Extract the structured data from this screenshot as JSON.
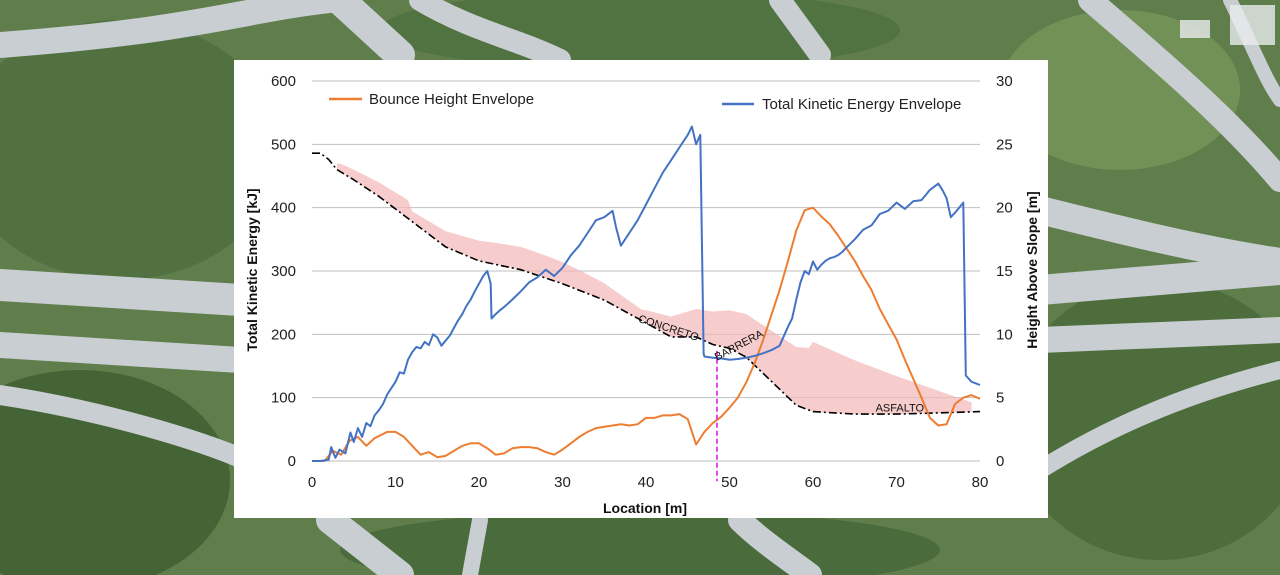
{
  "chart_data": {
    "type": "line",
    "xlabel": "Location [m]",
    "ylabel_left": "Total Kinetic Energy [kJ]",
    "ylabel_right": "Height Above Slope [m]",
    "xlim": [
      0,
      80
    ],
    "ylim_left": [
      0,
      600
    ],
    "ylim_right": [
      0,
      30
    ],
    "x_ticks": [
      0,
      10,
      20,
      30,
      40,
      50,
      60,
      70,
      80
    ],
    "y_left_ticks": [
      0,
      100,
      200,
      300,
      400,
      500,
      600
    ],
    "y_right_ticks": [
      0,
      5,
      10,
      15,
      20,
      25,
      30
    ],
    "grid": "horizontal",
    "legend_placement": "top",
    "series": [
      {
        "name": "Bounce Height Envelope",
        "axis": "right",
        "color": "#ed7d31",
        "x": [
          0,
          1.5,
          2.5,
          3.5,
          4.5,
          5.5,
          6.5,
          7.5,
          9,
          10,
          11,
          12,
          13,
          14,
          15,
          16,
          17,
          18,
          19,
          20,
          21,
          22,
          23,
          24,
          25,
          26,
          27,
          28,
          29,
          30,
          31,
          32,
          33,
          34,
          35,
          36,
          37,
          38,
          39,
          40,
          41,
          42,
          43,
          44,
          45,
          46,
          47,
          48,
          49,
          50,
          51,
          52,
          53,
          54,
          55,
          56,
          57,
          58,
          59,
          60,
          61,
          62,
          63,
          64,
          65,
          66,
          67,
          68,
          69,
          70,
          71,
          72,
          73,
          74,
          75,
          76,
          77,
          78,
          79,
          80
        ],
        "values": [
          0,
          0,
          0.8,
          0.5,
          1.6,
          1.9,
          1.2,
          1.8,
          2.3,
          2.3,
          1.9,
          1.2,
          0.5,
          0.7,
          0.3,
          0.4,
          0.8,
          1.2,
          1.4,
          1.4,
          1.0,
          0.5,
          0.6,
          1.0,
          1.1,
          1.1,
          1.0,
          0.7,
          0.5,
          0.9,
          1.4,
          1.9,
          2.3,
          2.6,
          2.7,
          2.8,
          2.9,
          2.8,
          2.9,
          3.4,
          3.4,
          3.6,
          3.6,
          3.7,
          3.3,
          1.3,
          2.3,
          3.0,
          3.5,
          4.2,
          5.0,
          6.2,
          7.7,
          9.5,
          11.5,
          13.5,
          15.8,
          18.2,
          19.8,
          20.0,
          19.3,
          18.7,
          17.8,
          16.8,
          15.8,
          14.6,
          13.5,
          12.0,
          10.8,
          9.6,
          8.0,
          6.5,
          5.0,
          3.4,
          2.8,
          2.9,
          4.5,
          5.0,
          5.2,
          4.9
        ]
      },
      {
        "name": "Total Kinetic Energy Envelope",
        "axis": "left",
        "color": "#4472c4",
        "x": [
          0,
          1,
          2,
          2.3,
          2.8,
          3.3,
          4,
          4.6,
          5,
          5.5,
          6,
          6.5,
          7,
          7.5,
          8,
          8.5,
          9,
          9.5,
          10,
          10.5,
          11,
          11.5,
          12,
          12.5,
          13,
          13.5,
          14,
          14.5,
          15,
          15.5,
          16,
          16.5,
          17,
          17.5,
          18,
          18.5,
          19,
          19.5,
          20,
          20.5,
          21,
          21.4,
          21.5,
          22,
          22.5,
          23,
          24,
          25,
          26,
          27,
          28,
          29,
          30,
          31,
          32,
          33,
          34,
          35,
          36,
          36.4,
          37,
          38,
          39,
          40,
          41,
          42,
          43,
          44,
          45,
          45.5,
          46,
          46.5,
          46.9,
          47,
          48,
          49,
          50,
          51,
          52,
          53,
          54,
          55,
          56,
          57,
          57.5,
          58,
          58.5,
          59,
          59.5,
          60,
          60.5,
          61,
          61.5,
          62,
          62.5,
          63,
          63.5,
          64,
          65,
          66,
          67,
          68,
          69,
          70,
          71,
          72,
          73,
          74,
          75,
          75.5,
          76,
          76.5,
          77,
          77.5,
          78,
          78.3,
          79,
          80
        ],
        "values": [
          0,
          0,
          2,
          22,
          5,
          18,
          12,
          45,
          30,
          52,
          38,
          60,
          55,
          72,
          80,
          90,
          105,
          115,
          125,
          140,
          138,
          160,
          172,
          180,
          178,
          188,
          183,
          200,
          195,
          182,
          190,
          198,
          210,
          222,
          232,
          245,
          255,
          268,
          280,
          292,
          300,
          280,
          225,
          232,
          238,
          243,
          255,
          268,
          282,
          290,
          302,
          292,
          305,
          325,
          340,
          360,
          380,
          385,
          395,
          370,
          340,
          360,
          380,
          405,
          430,
          455,
          475,
          495,
          515,
          528,
          500,
          515,
          170,
          165,
          163,
          162,
          160,
          161,
          163,
          166,
          170,
          175,
          182,
          212,
          225,
          255,
          282,
          300,
          295,
          315,
          302,
          310,
          316,
          320,
          322,
          325,
          330,
          337,
          350,
          365,
          372,
          390,
          395,
          408,
          398,
          410,
          412,
          428,
          438,
          428,
          415,
          385,
          392,
          400,
          408,
          135,
          125,
          120
        ]
      }
    ],
    "slope_profile": {
      "x": [
        0,
        0.5,
        1,
        2,
        3,
        5,
        8,
        12,
        16,
        20,
        25,
        30,
        35,
        40,
        43,
        46,
        48,
        50,
        52,
        55,
        58,
        60,
        65,
        70,
        75,
        80
      ],
      "values": [
        24.3,
        24.3,
        24.3,
        23.8,
        23.0,
        22.2,
        20.9,
        18.9,
        16.9,
        15.8,
        15.1,
        14.0,
        12.7,
        10.9,
        9.8,
        9.8,
        9.2,
        8.9,
        8.2,
        6.3,
        4.4,
        3.9,
        3.7,
        3.7,
        3.8,
        3.9
      ]
    },
    "annotations": [
      {
        "text": "CONCRETO",
        "x": 39,
        "y": 11.0,
        "axis": "right"
      },
      {
        "text": "BARRERA",
        "x": 48.5,
        "y": 7.9,
        "axis": "right",
        "color": "#e21ae2"
      },
      {
        "text": "ASFALTO",
        "x": 67.5,
        "y": 3.9,
        "axis": "right"
      }
    ],
    "barrier_x": 48.5
  }
}
